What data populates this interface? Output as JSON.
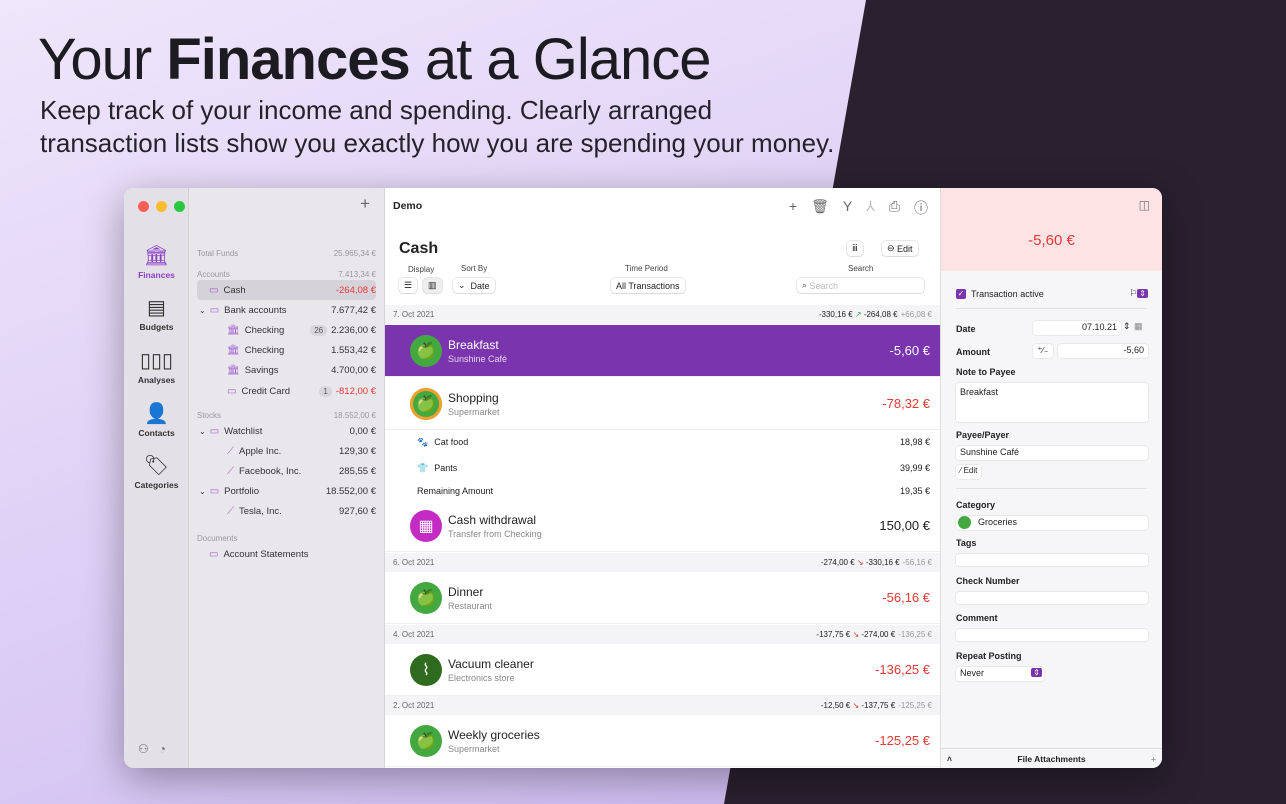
{
  "hero": {
    "title_pre": "Your ",
    "title_bold": "Finances",
    "title_post": " at a Glance",
    "subtitle": "Keep track of your income and spending. Clearly arranged transaction lists show you exactly how you are spending your money."
  },
  "rail": [
    {
      "label": "Finances",
      "icon": "bank-icon",
      "glyph": "🏛"
    },
    {
      "label": "Budgets",
      "icon": "document-icon",
      "glyph": "▤"
    },
    {
      "label": "Analyses",
      "icon": "bar-chart-icon",
      "glyph": "▯▯▯"
    },
    {
      "label": "Contacts",
      "icon": "person-icon",
      "glyph": "👤"
    },
    {
      "label": "Categories",
      "icon": "tag-icon",
      "glyph": "🏷"
    }
  ],
  "accent": "#7a34ad",
  "sidebar": {
    "total_label": "Total Funds",
    "total": "25.965,34 €",
    "accounts_label": "Accounts",
    "accounts_total": "7.413,34 €",
    "rows": [
      {
        "label": "Cash",
        "value": "-264,08 €",
        "neg": true,
        "indent": 0,
        "icon": "wallet-icon",
        "selected": true
      },
      {
        "label": "Bank accounts",
        "value": "7.677,42 €",
        "indent": 0,
        "icon": "folder-icon",
        "chev": true
      },
      {
        "label": "Checking",
        "value": "2.236,00 €",
        "indent": 1,
        "icon": "bank-icon",
        "badge": "26"
      },
      {
        "label": "Checking",
        "value": "1.553,42 €",
        "indent": 1,
        "icon": "bank-icon"
      },
      {
        "label": "Savings",
        "value": "4.700,00 €",
        "indent": 1,
        "icon": "bank-icon"
      },
      {
        "label": "Credit Card",
        "value": "-812,00 €",
        "neg": true,
        "indent": 1,
        "icon": "credit-card-icon",
        "badge": "1"
      }
    ],
    "stocks_label": "Stocks",
    "stocks_total": "18.552,00 €",
    "stock_rows": [
      {
        "label": "Watchlist",
        "value": "0,00 €",
        "indent": 0,
        "icon": "folder-icon",
        "chev": true
      },
      {
        "label": "Apple Inc.",
        "value": "129,30 €",
        "indent": 1,
        "icon": "chart-icon"
      },
      {
        "label": "Facebook, Inc.",
        "value": "285,55 €",
        "indent": 1,
        "icon": "chart-icon"
      },
      {
        "label": "Portfolio",
        "value": "18.552,00 €",
        "indent": 0,
        "icon": "folder-icon",
        "chev": true
      },
      {
        "label": "Tesla, Inc.",
        "value": "927,60 €",
        "indent": 1,
        "icon": "chart-icon"
      }
    ],
    "documents_label": "Documents",
    "documents_item": "Account Statements"
  },
  "main": {
    "window_title": "Demo",
    "title": "Cash",
    "edit": "Edit",
    "display_label": "Display",
    "sort_label": "Sort By",
    "sort_value": "Date",
    "period_label": "Time Period",
    "period_value": "All Transactions",
    "search_label": "Search",
    "search_placeholder": "Search",
    "groups": [
      {
        "date": "7. Oct 2021",
        "start": "-330,16 €",
        "end": "-264,08 €",
        "delta": "+66,08 €",
        "dir": "up"
      },
      {
        "date": "6. Oct 2021",
        "start": "-274,00 €",
        "end": "-330,16 €",
        "delta": "-56,16 €",
        "dir": "down"
      },
      {
        "date": "4. Oct 2021",
        "start": "-137,75 €",
        "end": "-274,00 €",
        "delta": "-136,25 €",
        "dir": "down"
      },
      {
        "date": "2. Oct 2021",
        "start": "-12,50 €",
        "end": "-137,75 €",
        "delta": "-125,25 €",
        "dir": "down"
      }
    ],
    "transactions": [
      {
        "title": "Breakfast",
        "sub": "Sunshine Café",
        "amount": "-5,60 €",
        "neg": true
      },
      {
        "title": "Shopping",
        "sub": "Supermarket",
        "amount": "-78,32 €",
        "neg": true
      },
      {
        "title": "Cash withdrawal",
        "sub": "Transfer from Checking",
        "amount": "150,00 €"
      },
      {
        "title": "Dinner",
        "sub": "Restaurant",
        "amount": "-56,16 €",
        "neg": true
      },
      {
        "title": "Vacuum cleaner",
        "sub": "Electronics store",
        "amount": "-136,25 €",
        "neg": true
      },
      {
        "title": "Weekly groceries",
        "sub": "Supermarket",
        "amount": "-125,25 €",
        "neg": true
      }
    ],
    "splits": [
      {
        "label": "Cat food",
        "value": "18,98 €"
      },
      {
        "label": "Pants",
        "value": "39,99 €"
      },
      {
        "label": "Remaining Amount",
        "value": "19,35 €"
      }
    ]
  },
  "detail": {
    "amount": "-5,60 €",
    "active_label": "Transaction active",
    "date_label": "Date",
    "date": "07.10.21",
    "amount_label": "Amount",
    "sign": "⁺∕₋",
    "amount_value": "-5,60",
    "note_label": "Note to Payee",
    "note": "Breakfast",
    "payee_label": "Payee/Payer",
    "payee": "Sunshine Café",
    "edit": "Edit",
    "category_label": "Category",
    "category": "Groceries",
    "tags_label": "Tags",
    "check_label": "Check Number",
    "comment_label": "Comment",
    "repeat_label": "Repeat Posting",
    "repeat": "Never",
    "attachments": "File Attachments"
  }
}
